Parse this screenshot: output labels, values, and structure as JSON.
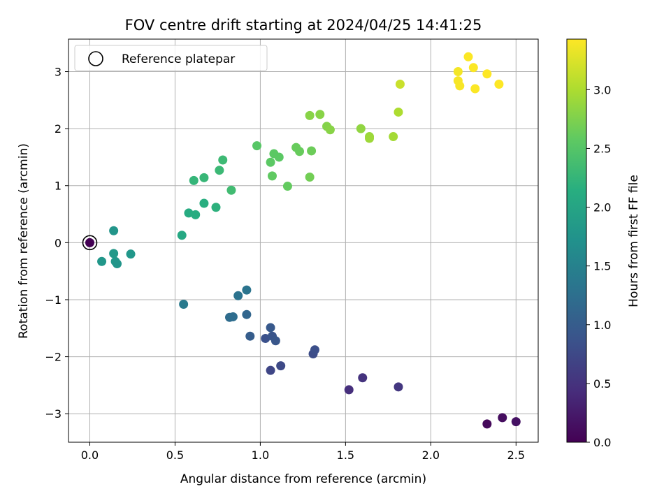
{
  "chart_data": {
    "type": "scatter",
    "title": "FOV centre drift starting at 2024/04/25 14:41:25",
    "xlabel": "Angular distance from reference (arcmin)",
    "ylabel": "Rotation from reference (arcmin)",
    "xlim": [
      -0.125,
      2.63
    ],
    "ylim": [
      -3.5,
      3.57
    ],
    "xticks": [
      0.0,
      0.5,
      1.0,
      1.5,
      2.0,
      2.5
    ],
    "xtick_labels": [
      "0.0",
      "0.5",
      "1.0",
      "1.5",
      "2.0",
      "2.5"
    ],
    "yticks": [
      -3,
      -2,
      -1,
      0,
      1,
      2,
      3
    ],
    "ytick_labels": [
      "−3",
      "−2",
      "−1",
      "0",
      "1",
      "2",
      "3"
    ],
    "grid": true,
    "legend": {
      "position": "top-left",
      "entries": [
        "Reference platepar"
      ]
    },
    "colorbar": {
      "label": "Hours from first FF file",
      "colormap": "viridis",
      "range": [
        0.0,
        3.43
      ],
      "ticks": [
        0.0,
        0.5,
        1.0,
        1.5,
        2.0,
        2.5,
        3.0
      ],
      "tick_labels": [
        "0.0",
        "0.5",
        "1.0",
        "1.5",
        "2.0",
        "2.5",
        "3.0"
      ]
    },
    "reference_point": {
      "x": 0.0,
      "y": 0.0
    },
    "points": [
      {
        "x": 0.0,
        "y": 0.0,
        "c": 0.0
      },
      {
        "x": 2.33,
        "y": -3.18,
        "c": 0.08
      },
      {
        "x": 2.42,
        "y": -3.07,
        "c": 0.12
      },
      {
        "x": 2.5,
        "y": -3.14,
        "c": 0.16
      },
      {
        "x": 1.52,
        "y": -2.58,
        "c": 0.45
      },
      {
        "x": 1.6,
        "y": -2.37,
        "c": 0.5
      },
      {
        "x": 1.81,
        "y": -2.53,
        "c": 0.55
      },
      {
        "x": 1.06,
        "y": -2.24,
        "c": 0.72
      },
      {
        "x": 1.12,
        "y": -2.16,
        "c": 0.76
      },
      {
        "x": 1.31,
        "y": -1.95,
        "c": 0.8
      },
      {
        "x": 1.32,
        "y": -1.88,
        "c": 0.82
      },
      {
        "x": 1.03,
        "y": -1.68,
        "c": 0.85
      },
      {
        "x": 1.07,
        "y": -1.64,
        "c": 0.9
      },
      {
        "x": 1.09,
        "y": -1.72,
        "c": 0.92
      },
      {
        "x": 1.06,
        "y": -1.49,
        "c": 0.95
      },
      {
        "x": 0.94,
        "y": -1.64,
        "c": 1.0
      },
      {
        "x": 0.92,
        "y": -1.26,
        "c": 1.12
      },
      {
        "x": 0.82,
        "y": -1.31,
        "c": 1.2
      },
      {
        "x": 0.84,
        "y": -1.3,
        "c": 1.22
      },
      {
        "x": 0.87,
        "y": -0.93,
        "c": 1.3
      },
      {
        "x": 0.92,
        "y": -0.83,
        "c": 1.32
      },
      {
        "x": 0.55,
        "y": -1.08,
        "c": 1.4
      },
      {
        "x": 0.14,
        "y": 0.21,
        "c": 1.78
      },
      {
        "x": 0.07,
        "y": -0.33,
        "c": 1.8
      },
      {
        "x": 0.14,
        "y": -0.19,
        "c": 1.82
      },
      {
        "x": 0.15,
        "y": -0.33,
        "c": 1.8
      },
      {
        "x": 0.16,
        "y": -0.37,
        "c": 1.78
      },
      {
        "x": 0.24,
        "y": -0.2,
        "c": 1.8
      },
      {
        "x": 0.54,
        "y": 0.13,
        "c": 2.05
      },
      {
        "x": 0.58,
        "y": 0.52,
        "c": 2.1
      },
      {
        "x": 0.62,
        "y": 0.49,
        "c": 2.12
      },
      {
        "x": 0.67,
        "y": 0.69,
        "c": 2.15
      },
      {
        "x": 0.74,
        "y": 0.62,
        "c": 2.18
      },
      {
        "x": 0.61,
        "y": 1.09,
        "c": 2.25
      },
      {
        "x": 0.67,
        "y": 1.14,
        "c": 2.27
      },
      {
        "x": 0.76,
        "y": 1.27,
        "c": 2.3
      },
      {
        "x": 0.78,
        "y": 1.45,
        "c": 2.32
      },
      {
        "x": 0.83,
        "y": 0.92,
        "c": 2.35
      },
      {
        "x": 0.98,
        "y": 1.7,
        "c": 2.52
      },
      {
        "x": 1.06,
        "y": 1.41,
        "c": 2.55
      },
      {
        "x": 1.08,
        "y": 1.56,
        "c": 2.55
      },
      {
        "x": 1.11,
        "y": 1.5,
        "c": 2.55
      },
      {
        "x": 1.07,
        "y": 1.17,
        "c": 2.58
      },
      {
        "x": 1.16,
        "y": 0.99,
        "c": 2.6
      },
      {
        "x": 1.21,
        "y": 1.67,
        "c": 2.62
      },
      {
        "x": 1.23,
        "y": 1.6,
        "c": 2.62
      },
      {
        "x": 1.3,
        "y": 1.61,
        "c": 2.65
      },
      {
        "x": 1.29,
        "y": 1.15,
        "c": 2.68
      },
      {
        "x": 1.29,
        "y": 2.23,
        "c": 2.8
      },
      {
        "x": 1.35,
        "y": 2.25,
        "c": 2.8
      },
      {
        "x": 1.39,
        "y": 2.04,
        "c": 2.78
      },
      {
        "x": 1.41,
        "y": 1.98,
        "c": 2.8
      },
      {
        "x": 1.59,
        "y": 2.0,
        "c": 2.85
      },
      {
        "x": 1.64,
        "y": 1.86,
        "c": 2.9
      },
      {
        "x": 1.64,
        "y": 1.83,
        "c": 2.92
      },
      {
        "x": 1.78,
        "y": 1.86,
        "c": 2.95
      },
      {
        "x": 1.81,
        "y": 2.29,
        "c": 3.0
      },
      {
        "x": 1.82,
        "y": 2.78,
        "c": 3.15
      },
      {
        "x": 2.16,
        "y": 3.0,
        "c": 3.38
      },
      {
        "x": 2.16,
        "y": 2.84,
        "c": 3.4
      },
      {
        "x": 2.17,
        "y": 2.75,
        "c": 3.4
      },
      {
        "x": 2.22,
        "y": 3.26,
        "c": 3.42
      },
      {
        "x": 2.25,
        "y": 3.07,
        "c": 3.42
      },
      {
        "x": 2.26,
        "y": 2.7,
        "c": 3.42
      },
      {
        "x": 2.33,
        "y": 2.96,
        "c": 3.43
      },
      {
        "x": 2.4,
        "y": 2.78,
        "c": 3.43
      }
    ]
  }
}
